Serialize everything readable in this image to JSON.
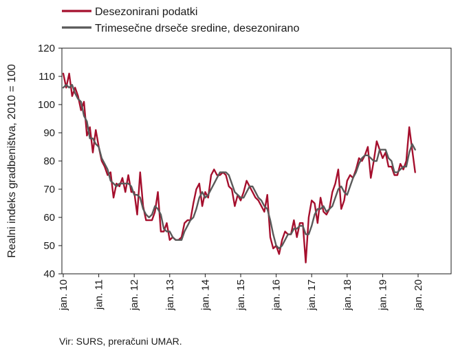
{
  "chart_data": {
    "type": "line",
    "ylabel": "Realni indeks gradbeništva, 2010 = 100",
    "xlabel": "",
    "ylim": [
      40,
      120
    ],
    "yticks": [
      40,
      50,
      60,
      70,
      80,
      90,
      100,
      110,
      120
    ],
    "grid": false,
    "legend_position": "top-left",
    "x_start": "2010-01",
    "x_end": "2020-04",
    "xtick_labels": [
      "jan. 10",
      "jan. 11",
      "jan. 12",
      "jan. 13",
      "jan. 14",
      "jan. 15",
      "jan. 16",
      "jan. 17",
      "jan. 18",
      "jan. 19",
      "jan. 20"
    ],
    "series": [
      {
        "name": "Desezonirani podatki",
        "color": "#a50f2d",
        "values": [
          111,
          106,
          111,
          103,
          106,
          103,
          98,
          101,
          89,
          92,
          83,
          91,
          85,
          80,
          78,
          75,
          76,
          67,
          72,
          71,
          74,
          69,
          75,
          69,
          69,
          61,
          76,
          64,
          59,
          59,
          59,
          62,
          69,
          55,
          55,
          58,
          52,
          53,
          52,
          52,
          53,
          58,
          59,
          59,
          65,
          70,
          72,
          64,
          69,
          67,
          75,
          77,
          75,
          75,
          76,
          75,
          71,
          70,
          64,
          68,
          66,
          69,
          73,
          71,
          69,
          67,
          66,
          64,
          62,
          68,
          53,
          49,
          50,
          47,
          52,
          55,
          54,
          54,
          59,
          53,
          58,
          58,
          44,
          60,
          66,
          65,
          58,
          67,
          62,
          61,
          63,
          69,
          72,
          77,
          63,
          66,
          73,
          75,
          74,
          77,
          81,
          80,
          82,
          85,
          74,
          80,
          87,
          84,
          81,
          83,
          78,
          78,
          75,
          75,
          79,
          77,
          80,
          92,
          84,
          76
        ],
        "line_width": 2.4
      },
      {
        "name": "Trimesečne drseče sredine, desezonirano",
        "color": "#595959",
        "values": [
          106,
          107,
          106,
          107,
          104,
          102,
          101,
          96,
          94,
          88,
          88,
          86,
          85,
          81,
          79,
          77,
          73,
          72,
          71,
          72,
          72,
          72,
          72,
          71,
          68,
          68,
          67,
          63,
          61,
          60,
          61,
          64,
          63,
          61,
          56,
          55,
          55,
          53,
          52,
          52,
          52,
          55,
          57,
          59,
          60,
          63,
          67,
          69,
          67,
          68,
          70,
          72,
          74,
          76,
          76,
          76,
          75,
          72,
          69,
          68,
          67,
          67,
          69,
          71,
          71,
          69,
          67,
          66,
          64,
          63,
          59,
          54,
          50,
          49,
          50,
          52,
          54,
          54,
          56,
          56,
          57,
          57,
          54,
          54,
          57,
          61,
          63,
          63,
          64,
          62,
          63,
          64,
          67,
          70,
          71,
          69,
          68,
          71,
          74,
          76,
          79,
          81,
          82,
          82,
          81,
          80,
          80,
          84,
          84,
          84,
          81,
          80,
          76,
          76,
          77,
          78,
          78,
          83,
          86,
          84
        ],
        "line_width": 2.4
      }
    ],
    "source": "Vir: SURS, preračuni UMAR."
  }
}
